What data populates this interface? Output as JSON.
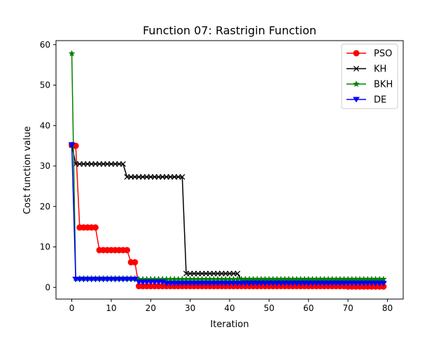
{
  "chart_data": {
    "type": "line",
    "title": "Function 07: Rastrigin Function",
    "xlabel": "Iteration",
    "ylabel": "Cost function value",
    "xlim": [
      -4,
      84
    ],
    "ylim": [
      -2.9,
      61.0
    ],
    "xticks": [
      0,
      10,
      20,
      30,
      40,
      50,
      60,
      70,
      80
    ],
    "yticks": [
      0,
      10,
      20,
      30,
      40,
      50,
      60
    ],
    "grid": false,
    "legend_position": "top-right",
    "x": [
      0,
      1,
      2,
      3,
      4,
      5,
      6,
      7,
      8,
      9,
      10,
      11,
      12,
      13,
      14,
      15,
      16,
      17,
      18,
      19,
      20,
      21,
      22,
      23,
      24,
      25,
      26,
      27,
      28,
      29,
      30,
      31,
      32,
      33,
      34,
      35,
      36,
      37,
      38,
      39,
      40,
      41,
      42,
      43,
      44,
      45,
      46,
      47,
      48,
      49,
      50,
      51,
      52,
      53,
      54,
      55,
      56,
      57,
      58,
      59,
      60,
      61,
      62,
      63,
      64,
      65,
      66,
      67,
      68,
      69,
      70,
      71,
      72,
      73,
      74,
      75,
      76,
      77,
      78,
      79
    ],
    "series": [
      {
        "name": "PSO",
        "color": "#ff0000",
        "marker": "circle",
        "values": [
          35.2,
          35.0,
          14.8,
          14.8,
          14.8,
          14.8,
          14.8,
          9.2,
          9.2,
          9.2,
          9.2,
          9.2,
          9.2,
          9.2,
          9.2,
          6.2,
          6.2,
          0.3,
          0.3,
          0.3,
          0.3,
          0.3,
          0.3,
          0.3,
          0.3,
          0.3,
          0.3,
          0.3,
          0.3,
          0.3,
          0.3,
          0.3,
          0.3,
          0.3,
          0.3,
          0.3,
          0.3,
          0.3,
          0.3,
          0.3,
          0.3,
          0.3,
          0.3,
          0.3,
          0.3,
          0.3,
          0.3,
          0.3,
          0.3,
          0.3,
          0.3,
          0.3,
          0.3,
          0.3,
          0.3,
          0.3,
          0.3,
          0.3,
          0.3,
          0.3,
          0.3,
          0.3,
          0.3,
          0.3,
          0.3,
          0.3,
          0.3,
          0.3,
          0.3,
          0.3,
          0.2,
          0.2,
          0.2,
          0.2,
          0.2,
          0.2,
          0.2,
          0.2,
          0.2,
          0.2
        ]
      },
      {
        "name": "KH",
        "color": "#000000",
        "marker": "x",
        "values": [
          35.2,
          30.5,
          30.5,
          30.5,
          30.5,
          30.5,
          30.5,
          30.5,
          30.5,
          30.5,
          30.5,
          30.5,
          30.5,
          30.5,
          27.3,
          27.3,
          27.3,
          27.3,
          27.3,
          27.3,
          27.3,
          27.3,
          27.3,
          27.3,
          27.3,
          27.3,
          27.3,
          27.3,
          27.3,
          3.4,
          3.4,
          3.4,
          3.4,
          3.4,
          3.4,
          3.4,
          3.4,
          3.4,
          3.4,
          3.4,
          3.4,
          3.4,
          3.4,
          1.7,
          1.7,
          1.7,
          1.7,
          1.7,
          1.7,
          1.7,
          1.7,
          1.7,
          1.7,
          1.7,
          1.7,
          1.7,
          1.7,
          1.7,
          1.7,
          1.7,
          1.7,
          1.7,
          1.7,
          1.7,
          1.7,
          1.7,
          1.7,
          1.7,
          1.7,
          1.7,
          1.7,
          1.7,
          1.7,
          1.7,
          1.7,
          1.7,
          1.7,
          1.7,
          1.7,
          1.7
        ]
      },
      {
        "name": "BKH",
        "color": "#008000",
        "marker": "star",
        "values": [
          57.8,
          2.2,
          2.2,
          2.2,
          2.2,
          2.2,
          2.2,
          2.2,
          2.2,
          2.2,
          2.2,
          2.2,
          2.2,
          2.2,
          2.2,
          2.2,
          2.2,
          2.0,
          2.0,
          2.0,
          2.0,
          2.0,
          2.0,
          2.0,
          2.0,
          2.0,
          2.0,
          2.0,
          2.0,
          2.0,
          2.0,
          2.0,
          2.0,
          2.0,
          2.0,
          2.0,
          2.0,
          2.0,
          2.0,
          2.0,
          2.0,
          2.0,
          2.0,
          2.0,
          2.0,
          2.0,
          2.0,
          2.0,
          2.0,
          2.0,
          2.0,
          2.0,
          2.0,
          2.0,
          2.0,
          2.0,
          2.0,
          2.0,
          2.0,
          2.0,
          2.0,
          2.0,
          2.0,
          2.0,
          2.0,
          2.0,
          2.0,
          2.0,
          2.0,
          2.0,
          2.0,
          2.0,
          2.0,
          2.0,
          2.0,
          2.0,
          2.0,
          2.0,
          2.0,
          2.0
        ]
      },
      {
        "name": "DE",
        "color": "#0000ff",
        "marker": "triangle-down",
        "values": [
          35.2,
          2.0,
          2.0,
          2.0,
          2.0,
          2.0,
          2.0,
          2.0,
          2.0,
          2.0,
          2.0,
          2.0,
          2.0,
          2.0,
          2.0,
          2.0,
          2.0,
          1.3,
          1.3,
          1.3,
          1.3,
          1.3,
          1.3,
          1.3,
          1.0,
          1.0,
          1.0,
          1.0,
          1.0,
          1.0,
          1.0,
          1.0,
          1.0,
          1.0,
          1.0,
          1.0,
          1.0,
          1.0,
          1.0,
          1.0,
          1.0,
          1.0,
          1.0,
          1.0,
          1.0,
          1.0,
          1.0,
          1.0,
          1.0,
          1.0,
          1.0,
          1.0,
          1.0,
          1.0,
          1.0,
          1.0,
          1.0,
          1.0,
          1.0,
          1.0,
          1.0,
          1.0,
          1.0,
          1.0,
          1.0,
          1.0,
          1.0,
          1.0,
          1.0,
          1.0,
          1.0,
          1.0,
          1.0,
          1.0,
          1.0,
          1.0,
          1.0,
          1.0,
          1.0,
          1.0
        ]
      }
    ]
  }
}
